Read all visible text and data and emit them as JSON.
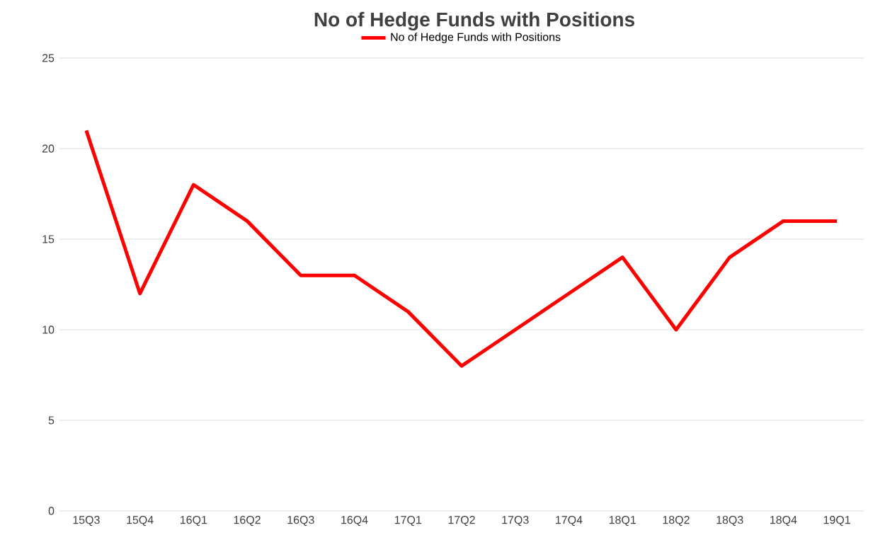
{
  "chart_data": {
    "type": "line",
    "title": "No of Hedge Funds with Positions",
    "categories": [
      "15Q3",
      "15Q4",
      "16Q1",
      "16Q2",
      "16Q3",
      "16Q4",
      "17Q1",
      "17Q2",
      "17Q3",
      "17Q4",
      "18Q1",
      "18Q2",
      "18Q3",
      "18Q4",
      "19Q1"
    ],
    "series": [
      {
        "name": "No of Hedge Funds with Positions",
        "color": "#ff0000",
        "values": [
          21,
          12,
          18,
          16,
          13,
          13,
          11,
          8,
          10,
          12,
          14,
          10,
          14,
          16,
          16
        ]
      }
    ],
    "ylim": [
      0,
      25
    ],
    "yticks": [
      0,
      5,
      10,
      15,
      20,
      25
    ],
    "grid": "y",
    "legend": "top",
    "marker": "none",
    "line_style": "solid"
  }
}
